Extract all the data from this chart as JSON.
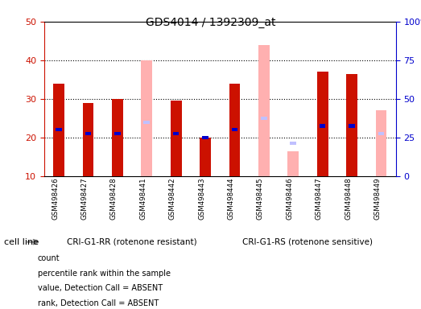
{
  "title": "GDS4014 / 1392309_at",
  "samples": [
    "GSM498426",
    "GSM498427",
    "GSM498428",
    "GSM498441",
    "GSM498442",
    "GSM498443",
    "GSM498444",
    "GSM498445",
    "GSM498446",
    "GSM498447",
    "GSM498448",
    "GSM498449"
  ],
  "group1_label": "CRI-G1-RR (rotenone resistant)",
  "group2_label": "CRI-G1-RS (rotenone sensitive)",
  "cell_line_label": "cell line",
  "ylim_left": [
    10,
    50
  ],
  "ylim_right": [
    0,
    100
  ],
  "yticks_left": [
    10,
    20,
    30,
    40,
    50
  ],
  "yticks_right": [
    0,
    25,
    50,
    75,
    100
  ],
  "count_values": [
    34,
    29,
    30,
    null,
    29.5,
    20,
    34,
    null,
    null,
    37,
    36.5,
    null
  ],
  "rank_values": [
    22,
    21,
    21,
    null,
    21,
    20,
    22,
    null,
    null,
    23,
    23,
    null
  ],
  "absent_value_values": [
    null,
    null,
    null,
    40,
    null,
    null,
    null,
    44,
    16.5,
    null,
    null,
    27
  ],
  "absent_rank_values": [
    null,
    null,
    null,
    24,
    null,
    null,
    null,
    25,
    18.5,
    null,
    null,
    21
  ],
  "count_color": "#cc1100",
  "rank_color": "#0000cc",
  "absent_value_color": "#ffb0b0",
  "absent_rank_color": "#c0c0ff",
  "bar_width": 0.38,
  "legend_items": [
    {
      "color": "#cc1100",
      "label": "count"
    },
    {
      "color": "#0000cc",
      "label": "percentile rank within the sample"
    },
    {
      "color": "#ffb0b0",
      "label": "value, Detection Call = ABSENT"
    },
    {
      "color": "#c0c0ff",
      "label": "rank, Detection Call = ABSENT"
    }
  ],
  "group1_bg": "#aaffaa",
  "group2_bg": "#55ee55",
  "tick_row_bg": "#cccccc",
  "plot_bg": "white",
  "yaxis_left_color": "#cc1100",
  "yaxis_right_color": "#0000cc"
}
